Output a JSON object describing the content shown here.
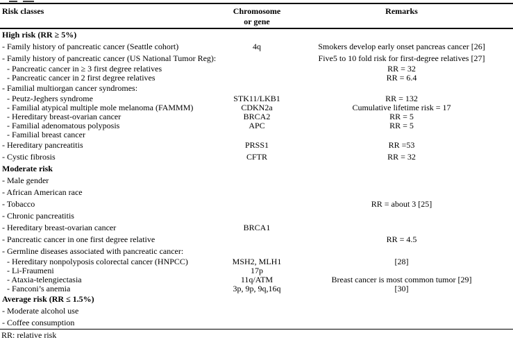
{
  "table": {
    "header": {
      "risk_classes": "Risk classes",
      "chromosome_line1": "Chromosome",
      "chromosome_line2": "or gene",
      "remarks": "Remarks"
    },
    "rows": [
      {
        "type": "section",
        "risk": "High risk (RR ≥ 5%)",
        "gene": "",
        "remark": ""
      },
      {
        "type": "item",
        "risk": "- Family history of pancreatic cancer (Seattle cohort)",
        "gene": "4q",
        "remark": "Smokers develop early onset pancreas cancer [26]"
      },
      {
        "type": "item",
        "risk": "- Family history of pancreatic cancer (US National Tumor Reg):",
        "gene": "",
        "remark": "Five5 to 10 fold risk for first-degree relatives [27]"
      },
      {
        "type": "subitem",
        "risk": "- Pancreatic cancer in ≥ 3 first degree relatives",
        "gene": "",
        "remark": "RR = 32"
      },
      {
        "type": "subitem",
        "risk": "- Pancreatic cancer in 2 first degree relatives",
        "gene": "",
        "remark": "RR = 6.4"
      },
      {
        "type": "item",
        "risk": "- Familial multiorgan cancer syndromes:",
        "gene": "",
        "remark": ""
      },
      {
        "type": "subitem",
        "risk": "- Peutz-Jeghers syndrome",
        "gene": "STK11/LKB1",
        "remark": "RR = 132"
      },
      {
        "type": "subitem",
        "risk": "- Familial atypical multiple mole melanoma (FAMMM)",
        "gene": "CDKN2a",
        "remark": "Cumulative lifetime risk = 17"
      },
      {
        "type": "subitem",
        "risk": "- Hereditary breast-ovarian cancer",
        "gene": "BRCA2",
        "remark": "RR = 5"
      },
      {
        "type": "subitem",
        "risk": "- Familial adenomatous polyposis",
        "gene": "APC",
        "remark": "RR = 5"
      },
      {
        "type": "subitem",
        "risk": "- Familial breast cancer",
        "gene": "",
        "remark": ""
      },
      {
        "type": "item",
        "risk": "- Hereditary pancreatitis",
        "gene": "PRSS1",
        "remark": "RR =53"
      },
      {
        "type": "item",
        "risk": "- Cystic fibrosis",
        "gene": "CFTR",
        "remark": "RR = 32"
      },
      {
        "type": "section",
        "risk": "Moderate risk",
        "gene": "",
        "remark": ""
      },
      {
        "type": "item",
        "risk": "- Male gender",
        "gene": "",
        "remark": ""
      },
      {
        "type": "item",
        "risk": "- African American race",
        "gene": "",
        "remark": ""
      },
      {
        "type": "item",
        "risk": "- Tobacco",
        "gene": "",
        "remark": "RR = about 3 [25]"
      },
      {
        "type": "item",
        "risk": "- Chronic pancreatitis",
        "gene": "",
        "remark": ""
      },
      {
        "type": "item",
        "risk": "- Hereditary breast-ovarian cancer",
        "gene": "BRCA1",
        "remark": ""
      },
      {
        "type": "item",
        "risk": "- Pancreatic cancer in one first degree relative",
        "gene": "",
        "remark": "RR = 4.5"
      },
      {
        "type": "item",
        "risk": "- Germline diseases associated with pancreatic cancer:",
        "gene": "",
        "remark": ""
      },
      {
        "type": "subitem",
        "risk": "- Hereditary nonpolyposis colorectal cancer (HNPCC)",
        "gene": "MSH2, MLH1",
        "remark": "[28]"
      },
      {
        "type": "subitem",
        "risk": "- Li-Fraumeni",
        "gene": "17p",
        "remark": ""
      },
      {
        "type": "subitem",
        "risk": "- Ataxia-telengiectasia",
        "gene": "11q/ATM",
        "remark": "Breast cancer is most common tumor [29]"
      },
      {
        "type": "subitem",
        "risk": "- Fanconi’s anemia",
        "gene": "3p, 9p, 9q,16q",
        "remark": "[30]"
      },
      {
        "type": "section",
        "risk": "Average risk (RR ≤ 1.5%)",
        "gene": "",
        "remark": ""
      },
      {
        "type": "item",
        "risk": "- Moderate alcohol use",
        "gene": "",
        "remark": ""
      },
      {
        "type": "item",
        "risk": "- Coffee consumption",
        "gene": "",
        "remark": ""
      }
    ],
    "footnote": "RR: relative risk"
  }
}
